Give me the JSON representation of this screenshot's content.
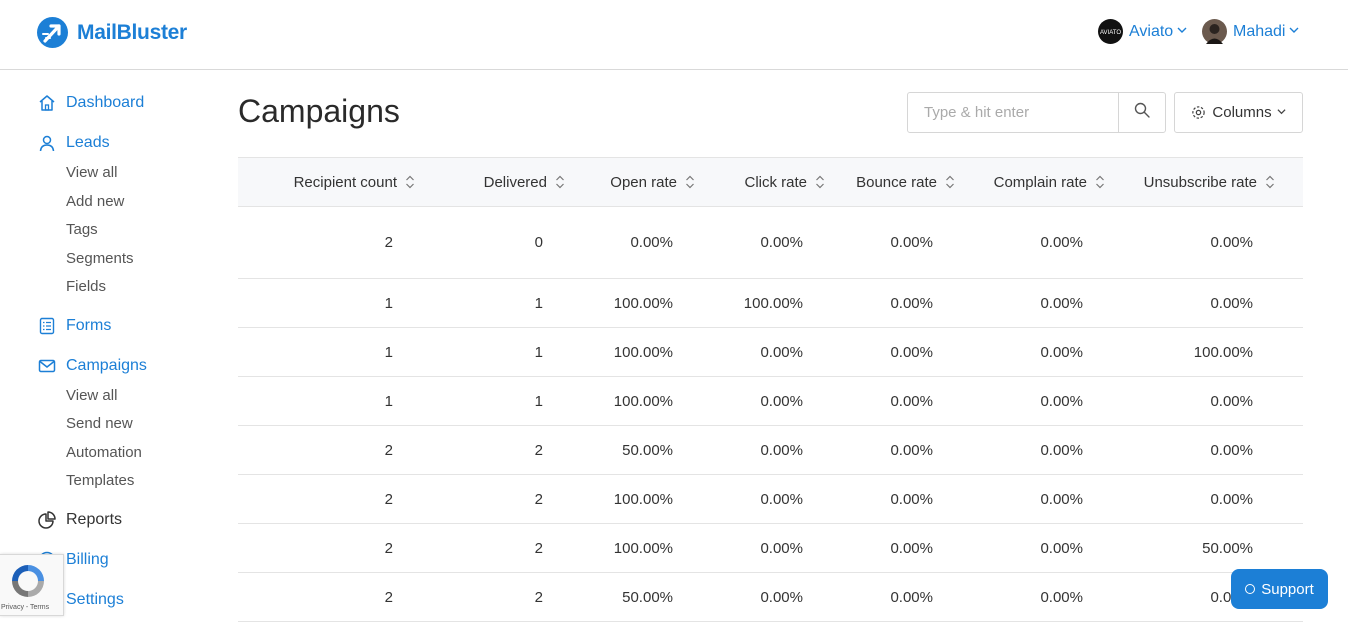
{
  "brand": {
    "name": "MailBluster",
    "color": "#1c7fd6"
  },
  "header": {
    "workspace": {
      "label": "Aviato",
      "avatar_icon": "aviato-logo"
    },
    "user": {
      "label": "Mahadi",
      "avatar_icon": "user-avatar"
    }
  },
  "sidebar": {
    "dashboard": "Dashboard",
    "leads": {
      "label": "Leads",
      "items": [
        "View all",
        "Add new",
        "Tags",
        "Segments",
        "Fields"
      ]
    },
    "forms": "Forms",
    "campaigns": {
      "label": "Campaigns",
      "items": [
        "View all",
        "Send new",
        "Automation",
        "Templates"
      ]
    },
    "reports": "Reports",
    "billing": "Billing",
    "settings": "Settings"
  },
  "main": {
    "title": "Campaigns",
    "search": {
      "placeholder": "Type & hit enter",
      "value": ""
    },
    "columns_button": "Columns"
  },
  "table": {
    "headers": [
      "Recipient count",
      "Delivered",
      "Open rate",
      "Click rate",
      "Bounce rate",
      "Complain rate",
      "Unsubscribe rate"
    ],
    "rows": [
      [
        "2",
        "0",
        "0.00%",
        "0.00%",
        "0.00%",
        "0.00%",
        "0.00%"
      ],
      [
        "1",
        "1",
        "100.00%",
        "100.00%",
        "0.00%",
        "0.00%",
        "0.00%"
      ],
      [
        "1",
        "1",
        "100.00%",
        "0.00%",
        "0.00%",
        "0.00%",
        "100.00%"
      ],
      [
        "1",
        "1",
        "100.00%",
        "0.00%",
        "0.00%",
        "0.00%",
        "0.00%"
      ],
      [
        "2",
        "2",
        "50.00%",
        "0.00%",
        "0.00%",
        "0.00%",
        "0.00%"
      ],
      [
        "2",
        "2",
        "100.00%",
        "0.00%",
        "0.00%",
        "0.00%",
        "0.00%"
      ],
      [
        "2",
        "2",
        "100.00%",
        "0.00%",
        "0.00%",
        "0.00%",
        "50.00%"
      ],
      [
        "2",
        "2",
        "50.00%",
        "0.00%",
        "0.00%",
        "0.00%",
        "0.00%"
      ]
    ]
  },
  "support": {
    "label": "Support"
  },
  "recaptcha": {
    "terms": "Privacy - Terms"
  }
}
